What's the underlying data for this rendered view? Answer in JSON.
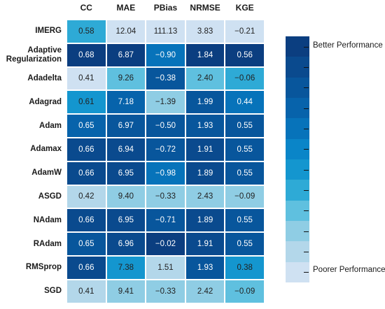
{
  "chart_data": {
    "type": "heatmap",
    "columns": [
      "CC",
      "MAE",
      "PBias",
      "NRMSE",
      "KGE"
    ],
    "rows": [
      {
        "label": "IMERG",
        "values": [
          "0.58",
          "12.04",
          "111.13",
          "3.83",
          "−0.21"
        ]
      },
      {
        "label": "Adaptive Regularization",
        "values": [
          "0.68",
          "6.87",
          "−0.90",
          "1.84",
          "0.56"
        ]
      },
      {
        "label": "Adadelta",
        "values": [
          "0.41",
          "9.26",
          "−0.38",
          "2.40",
          "−0.06"
        ]
      },
      {
        "label": "Adagrad",
        "values": [
          "0.61",
          "7.18",
          "−1.39",
          "1.99",
          "0.44"
        ]
      },
      {
        "label": "Adam",
        "values": [
          "0.65",
          "6.97",
          "−0.50",
          "1.93",
          "0.55"
        ]
      },
      {
        "label": "Adamax",
        "values": [
          "0.66",
          "6.94",
          "−0.72",
          "1.91",
          "0.55"
        ]
      },
      {
        "label": "AdamW",
        "values": [
          "0.66",
          "6.95",
          "−0.98",
          "1.89",
          "0.55"
        ]
      },
      {
        "label": "ASGD",
        "values": [
          "0.42",
          "9.40",
          "−0.33",
          "2.43",
          "−0.09"
        ]
      },
      {
        "label": "NAdam",
        "values": [
          "0.66",
          "6.95",
          "−0.71",
          "1.89",
          "0.55"
        ]
      },
      {
        "label": "RAdam",
        "values": [
          "0.65",
          "6.96",
          "−0.02",
          "1.91",
          "0.55"
        ]
      },
      {
        "label": "RMSprop",
        "values": [
          "0.66",
          "7.38",
          "1.51",
          "1.93",
          "0.38"
        ]
      },
      {
        "label": "SGD",
        "values": [
          "0.41",
          "9.41",
          "−0.33",
          "2.42",
          "−0.09"
        ]
      }
    ],
    "performance_level": [
      [
        5,
        1,
        1,
        1,
        1
      ],
      [
        12,
        12,
        8,
        12,
        12
      ],
      [
        1,
        4,
        10,
        4,
        5
      ],
      [
        6,
        9,
        3,
        10,
        8
      ],
      [
        9,
        10,
        10,
        10,
        10
      ],
      [
        11,
        11,
        10,
        11,
        10
      ],
      [
        11,
        11,
        8,
        11,
        10
      ],
      [
        2,
        3,
        3,
        3,
        3
      ],
      [
        11,
        11,
        10,
        11,
        10
      ],
      [
        10,
        11,
        12,
        11,
        10
      ],
      [
        11,
        6,
        2,
        10,
        6
      ],
      [
        2,
        3,
        3,
        3,
        4
      ]
    ],
    "colorbar": {
      "levels": 12,
      "top_label": "Better Performance",
      "bottom_label": "Poorer Performance"
    },
    "colors": [
      "#cfe1f2",
      "#b3d7ea",
      "#8fcde4",
      "#5fc0df",
      "#2eaad6",
      "#1496cf",
      "#0a85c8",
      "#0773ba",
      "#0763ab",
      "#08569c",
      "#0a4a8e",
      "#0b3e80"
    ]
  }
}
